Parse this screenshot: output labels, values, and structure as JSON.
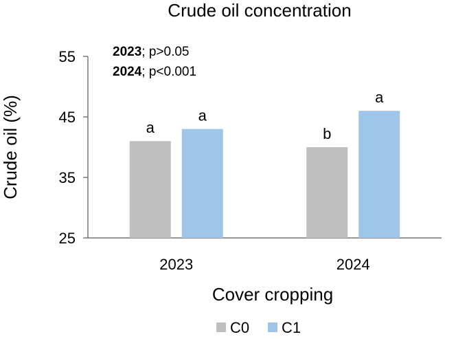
{
  "chart_data": {
    "type": "bar",
    "title": "Crude oil concentration",
    "xlabel": "Cover cropping",
    "ylabel": "Crude oil (%)",
    "ylim": [
      25,
      55
    ],
    "yticks": [
      "25",
      "35",
      "45",
      "55"
    ],
    "categories": [
      "2023",
      "2024"
    ],
    "series": [
      {
        "name": "C0",
        "color": "#bfbfbf",
        "values": [
          41,
          40
        ],
        "letters": [
          "a",
          "b"
        ]
      },
      {
        "name": "C1",
        "color": "#9fc5e8",
        "values": [
          43,
          46
        ],
        "letters": [
          "a",
          "a"
        ]
      }
    ],
    "annotations": [
      {
        "bold": "2023",
        "text": ";  p>0.05"
      },
      {
        "bold": "2024",
        "text": ";  p<0.001"
      }
    ],
    "grid": false,
    "legend_position": "bottom"
  }
}
